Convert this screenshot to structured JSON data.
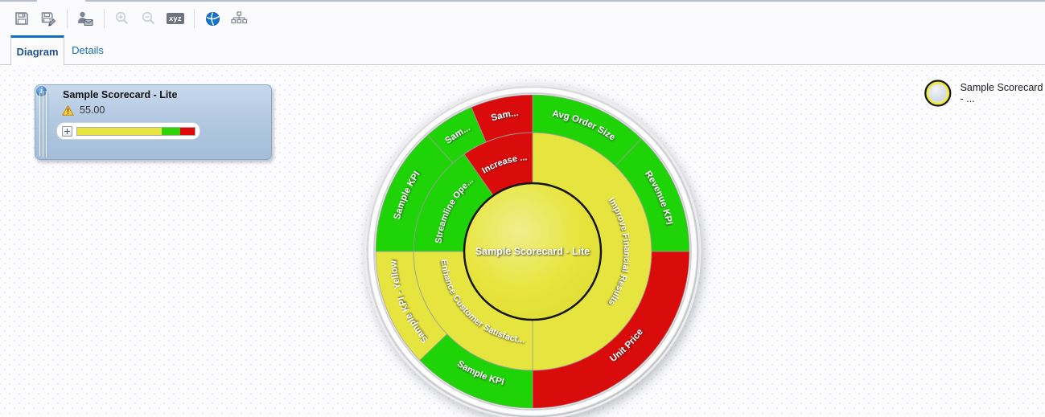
{
  "toolbar": {
    "icons": [
      "save-icon",
      "save-as-icon",
      "user-envelope-icon",
      "zoom-in-icon",
      "zoom-out-icon",
      "xyz-badge-icon",
      "globe-icon",
      "hierarchy-icon"
    ],
    "xyz_label": "xyz",
    "disabled_icons": [
      "zoom-in-icon",
      "zoom-out-icon"
    ]
  },
  "tabs": [
    {
      "label": "Diagram",
      "active": true
    },
    {
      "label": "Details",
      "active": false
    }
  ],
  "info_card": {
    "title": "Sample Scorecard - Lite",
    "status_icon": "warning-icon",
    "status_value": "55.00",
    "gauge": {
      "segments": [
        {
          "color": "#e8e53e",
          "pct": 72
        },
        {
          "color": "#2bd600",
          "pct": 16
        },
        {
          "color": "#df0707",
          "pct": 12
        }
      ]
    }
  },
  "legend": {
    "label": "Sample Scorecard - ..."
  },
  "chart_data": {
    "type": "sunburst",
    "title": "Sample Scorecard - Lite strategy wheel",
    "angle_unit": "degrees clockwise from 12 o'clock",
    "center": {
      "label": "Sample Scorecard - Lite",
      "status": "yellow"
    },
    "rings": [
      {
        "name": "objectives",
        "segments": [
          {
            "label": "Improve Financial Results",
            "start": 0,
            "end": 180,
            "status": "yellow"
          },
          {
            "label": "Enhance Customer Satisfact...",
            "start": 180,
            "end": 270,
            "status": "yellow"
          },
          {
            "label": "Streamline Ope...",
            "start": 270,
            "end": 325,
            "status": "green"
          },
          {
            "label": "Increase ...",
            "start": 325,
            "end": 360,
            "status": "red"
          }
        ]
      },
      {
        "name": "kpis",
        "segments": [
          {
            "label": "Avg Order Size",
            "start": 0,
            "end": 44,
            "status": "green"
          },
          {
            "label": "Revenue KPI",
            "start": 44,
            "end": 90,
            "status": "green"
          },
          {
            "label": "Unit Price",
            "start": 90,
            "end": 180,
            "status": "red"
          },
          {
            "label": "Sample KPI",
            "start": 180,
            "end": 226,
            "status": "green"
          },
          {
            "label": "Sample KPI - Yellow",
            "start": 226,
            "end": 270,
            "status": "yellow"
          },
          {
            "label": "Sample KPI",
            "start": 270,
            "end": 318,
            "status": "green"
          },
          {
            "label": "Sam...",
            "start": 318,
            "end": 337,
            "status": "green"
          },
          {
            "label": "Sam...",
            "start": 337,
            "end": 360,
            "status": "red"
          }
        ]
      }
    ],
    "status_colors": {
      "green": "#1ed407",
      "yellow": "#e6e43e",
      "red": "#d90b0b"
    }
  }
}
